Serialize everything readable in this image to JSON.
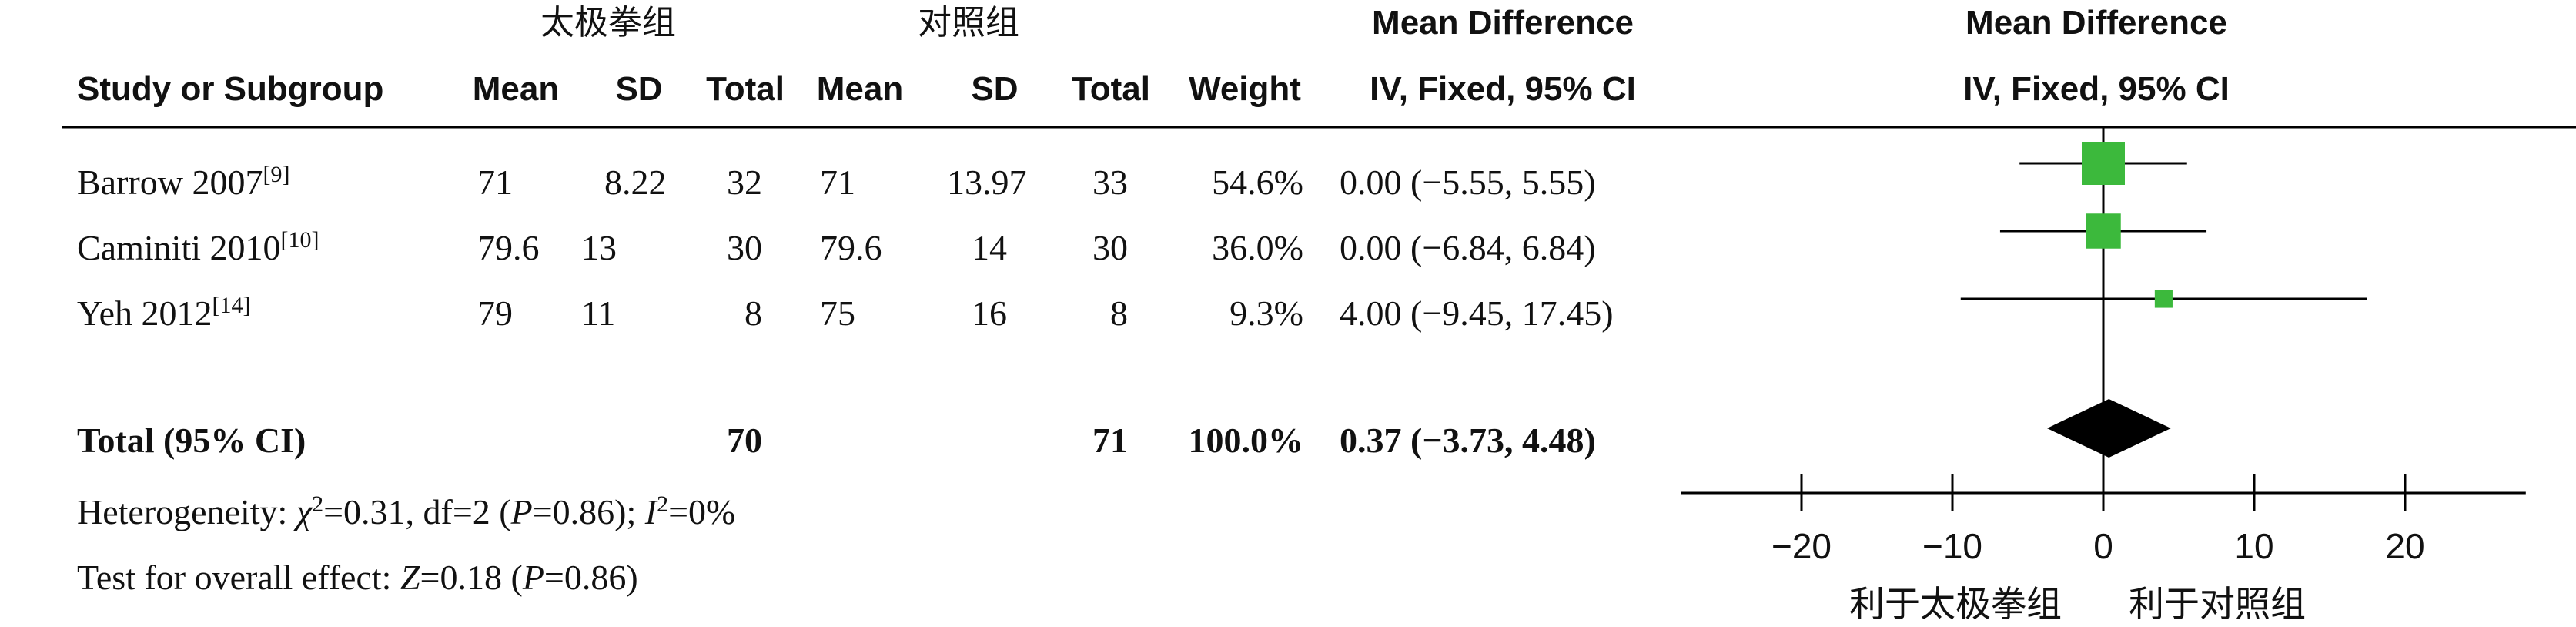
{
  "header": {
    "group1_name": "太极拳组",
    "group2_name": "对照组",
    "effect_title": "Mean Difference",
    "effect_method": "IV, Fixed, 95% CI",
    "plot_title": "Mean Difference",
    "plot_method": "IV, Fixed, 95% CI",
    "study_col": "Study or Subgroup",
    "mean_col": "Mean",
    "sd_col": "SD",
    "total_col": "Total",
    "weight_col": "Weight"
  },
  "studies": [
    {
      "name": "Barrow 2007",
      "ref": "[9]",
      "m1": "71",
      "sd1": "8.22",
      "n1": "32",
      "m2": "71",
      "sd2": "13.97",
      "n2": "33",
      "weight": "54.6%",
      "ci_text": "0.00 (−5.55, 5.55)"
    },
    {
      "name": "Caminiti 2010",
      "ref": "[10]",
      "m1": "79.6",
      "sd1": "13",
      "n1": "30",
      "m2": "79.6",
      "sd2": "14",
      "n2": "30",
      "weight": "36.0%",
      "ci_text": "0.00 (−6.84, 6.84)"
    },
    {
      "name": "Yeh 2012",
      "ref": "[14]",
      "m1": "79",
      "sd1": "11",
      "n1": "8",
      "m2": "75",
      "sd2": "16",
      "n2": "8",
      "weight": "9.3%",
      "ci_text": "4.00 (−9.45, 17.45)"
    }
  ],
  "total": {
    "label": "Total (95% CI)",
    "n1": "70",
    "n2": "71",
    "weight": "100.0%",
    "ci_text": "0.37 (−3.73, 4.48)"
  },
  "footnotes": {
    "het_prefix": "Heterogeneity: ",
    "chi_symbol": "χ",
    "chi_sup": "2",
    "het_stats": "=0.31, df=2 (",
    "p_symbol": "P",
    "het_p": "=0.86); ",
    "i_symbol": "I",
    "i_sup": "2",
    "i_value": "=0%",
    "overall_prefix": "Test for overall effect: ",
    "z_symbol": "Z",
    "z_value": "=0.18 (",
    "p2_symbol": "P",
    "overall_p": "=0.86)"
  },
  "axis_labels": {
    "left": "利于太极拳组",
    "right": "利于对照组"
  },
  "colors": {
    "marker": "#3cb93c",
    "diamond": "#000000",
    "line": "#000000"
  },
  "chart_data": {
    "type": "forest",
    "x_ticks": [
      -20,
      -10,
      0,
      10,
      20
    ],
    "x_tick_labels": [
      "−20",
      "−10",
      "0",
      "10",
      "20"
    ],
    "xlim": [
      -28,
      28
    ],
    "studies": [
      {
        "est": 0.0,
        "lo": -5.55,
        "hi": 5.55,
        "weight": 54.6
      },
      {
        "est": 0.0,
        "lo": -6.84,
        "hi": 6.84,
        "weight": 36.0
      },
      {
        "est": 4.0,
        "lo": -9.45,
        "hi": 17.45,
        "weight": 9.3
      }
    ],
    "total": {
      "est": 0.37,
      "lo": -3.73,
      "hi": 4.48
    }
  }
}
